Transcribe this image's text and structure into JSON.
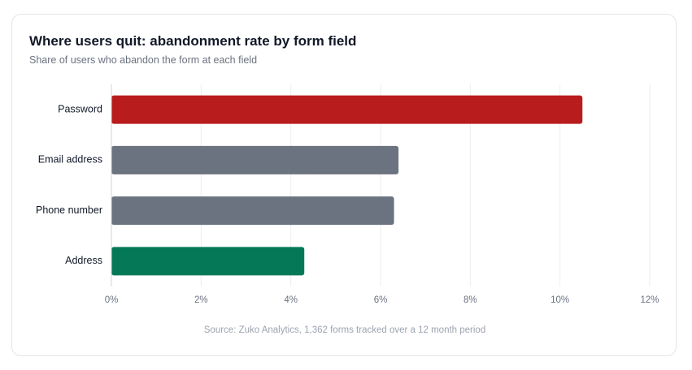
{
  "header": {
    "title": "Where users quit: abandonment rate by form field",
    "subtitle": "Share of users who abandon the form at each field"
  },
  "footer": {
    "source": "Source: Zuko Analytics, 1,362 forms tracked over a 12 month period"
  },
  "chart_data": {
    "type": "bar",
    "orientation": "horizontal",
    "categories": [
      "Password",
      "Email address",
      "Phone number",
      "Address"
    ],
    "values": [
      10.5,
      6.4,
      6.3,
      4.3
    ],
    "colors": [
      "#b91c1c",
      "#6b7280",
      "#6b7280",
      "#047857"
    ],
    "xlim": [
      0,
      12
    ],
    "xticks": [
      0,
      2,
      4,
      6,
      8,
      10,
      12
    ],
    "xtick_labels": [
      "0%",
      "2%",
      "4%",
      "6%",
      "8%",
      "10%",
      "12%"
    ],
    "grid": "vertical",
    "gridline_color": "#eeeeee",
    "axis_color": "#d1d5db",
    "label_color": "#111827",
    "tick_color": "#6b7280"
  }
}
